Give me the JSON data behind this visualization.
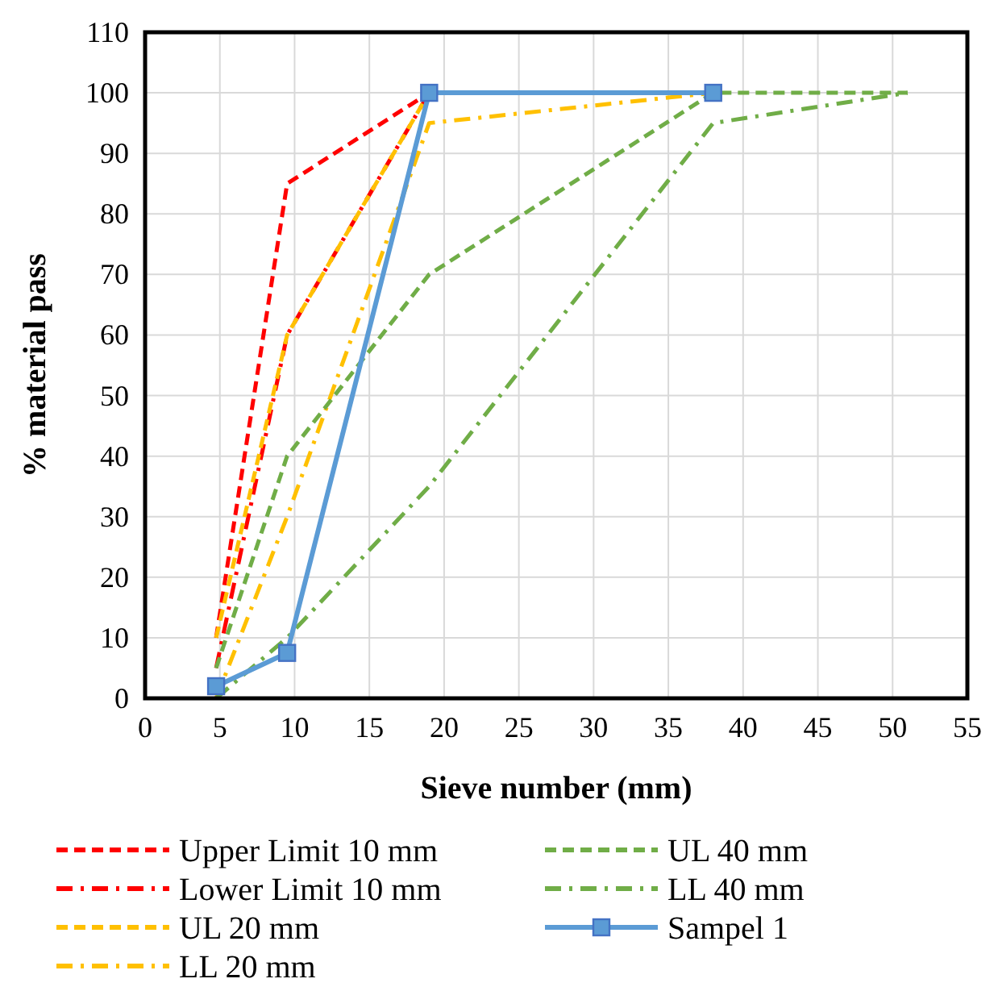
{
  "chart_data": {
    "type": "line",
    "xlabel": "Sieve number (mm)",
    "ylabel": "% material pass",
    "xlim": [
      0,
      55
    ],
    "xticks": [
      0,
      5,
      10,
      15,
      20,
      25,
      30,
      35,
      40,
      45,
      50,
      55
    ],
    "ylim": [
      0,
      110
    ],
    "yticks": [
      0,
      10,
      20,
      30,
      40,
      50,
      60,
      70,
      80,
      90,
      100,
      110
    ],
    "grid": true,
    "legend": "bottom",
    "series": [
      {
        "name": "Upper Limit 10 mm",
        "color": "#ff0000",
        "line_style": "dashed",
        "marker": "none",
        "x": [
          4.75,
          9.5,
          19
        ],
        "values": [
          10,
          85,
          100
        ]
      },
      {
        "name": "Lower Limit 10 mm",
        "color": "#ff0000",
        "line_style": "dashdot",
        "marker": "none",
        "x": [
          4.75,
          9.5,
          19
        ],
        "values": [
          5,
          60,
          100
        ]
      },
      {
        "name": "UL 20 mm",
        "color": "#ffc000",
        "line_style": "dashed",
        "marker": "none",
        "x": [
          4.75,
          9.5,
          19,
          38
        ],
        "values": [
          10,
          60,
          100,
          100
        ]
      },
      {
        "name": "LL 20 mm",
        "color": "#ffc000",
        "line_style": "dashdot",
        "marker": "none",
        "x": [
          4.75,
          9.5,
          19,
          38
        ],
        "values": [
          0,
          30,
          95,
          100
        ]
      },
      {
        "name": "UL 40 mm",
        "color": "#70ad47",
        "line_style": "dashed",
        "marker": "none",
        "x": [
          4.75,
          9.5,
          19,
          38,
          51
        ],
        "values": [
          5,
          40,
          70,
          100,
          100
        ]
      },
      {
        "name": "LL 40 mm",
        "color": "#70ad47",
        "line_style": "dashdot",
        "marker": "none",
        "x": [
          4.75,
          9.5,
          19,
          38,
          51
        ],
        "values": [
          0,
          10,
          35,
          95,
          100
        ]
      },
      {
        "name": "Sampel 1",
        "color": "#5b9bd5",
        "line_style": "solid",
        "marker": "square",
        "x": [
          4.75,
          9.5,
          19,
          38
        ],
        "values": [
          2,
          7.5,
          100,
          100
        ]
      }
    ]
  }
}
